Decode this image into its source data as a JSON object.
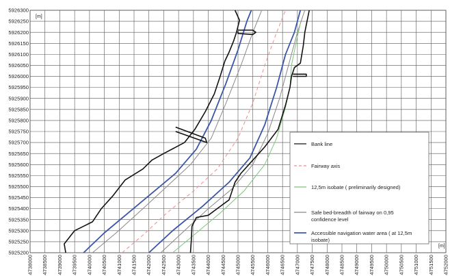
{
  "chart_data": {
    "type": "line",
    "x_unit": "[m]",
    "y_unit": "[m]",
    "xlim": [
      4738000,
      4752000
    ],
    "ylim": [
      5925200,
      5926300
    ],
    "x_ticks": [
      "4738000",
      "4738500",
      "4739000",
      "4739500",
      "4740000",
      "4740500",
      "4741000",
      "4741500",
      "4742000",
      "4742500",
      "4743000",
      "4743500",
      "4744000",
      "4744500",
      "4745000",
      "4745500",
      "4746000",
      "4746500",
      "4747000",
      "4747500",
      "4748000",
      "4748500",
      "4749000",
      "4749500",
      "4750000",
      "4750500",
      "4751000",
      "4751500",
      "4752000"
    ],
    "y_ticks": [
      "5926300",
      "5926250",
      "5926200",
      "5926150",
      "5926100",
      "5926050",
      "5926000",
      "5925950",
      "5925900",
      "5925850",
      "5925800",
      "5925750",
      "5925700",
      "5925650",
      "5925600",
      "5925550",
      "5925500",
      "5925450",
      "5925400",
      "5925350",
      "5925300",
      "5925250",
      "5925200"
    ],
    "grid": true,
    "legend_position": "bottom-right",
    "colors": {
      "bank_line": "#111111",
      "fairway_axis": "#f08a8a",
      "isobate": "#7cc47c",
      "safe_bed": "#888888",
      "accessible": "#3a55a8"
    },
    "series": [
      {
        "key": "bank_line",
        "name": "Bank line",
        "style": "solid",
        "segments": [
          [
            [
              4739200,
              5925200
            ],
            [
              4739150,
              5925240
            ],
            [
              4739500,
              5925300
            ],
            [
              4740100,
              5925340
            ],
            [
              4740400,
              5925400
            ],
            [
              4740800,
              5925460
            ],
            [
              4741200,
              5925530
            ],
            [
              4741800,
              5925580
            ],
            [
              4742100,
              5925620
            ],
            [
              4742500,
              5925650
            ],
            [
              4743200,
              5925700
            ],
            [
              4743550,
              5925760
            ],
            [
              4743900,
              5925840
            ],
            [
              4744200,
              5925920
            ],
            [
              4744400,
              5926000
            ],
            [
              4744560,
              5926070
            ],
            [
              4744700,
              5926110
            ],
            [
              4744850,
              5926160
            ],
            [
              4744950,
              5926200
            ],
            [
              4745050,
              5926255
            ],
            [
              4744900,
              5926300
            ]
          ],
          [
            [
              4742900,
              5925770
            ],
            [
              4743900,
              5925720
            ],
            [
              4743950,
              5925700
            ],
            [
              4742900,
              5925750
            ]
          ],
          [
            [
              4745000,
              5926205
            ],
            [
              4745000,
              5926195
            ],
            [
              4745500,
              5926190
            ],
            [
              4745600,
              5926200
            ],
            [
              4745500,
              5926210
            ],
            [
              4745000,
              5926210
            ]
          ],
          [
            [
              4743400,
              5925200
            ],
            [
              4743430,
              5925260
            ],
            [
              4743450,
              5925320
            ],
            [
              4743600,
              5925360
            ],
            [
              4744000,
              5925370
            ],
            [
              4744300,
              5925400
            ],
            [
              4744700,
              5925440
            ],
            [
              4744900,
              5925520
            ],
            [
              4745100,
              5925560
            ],
            [
              4745500,
              5925620
            ],
            [
              4745900,
              5925680
            ],
            [
              4746350,
              5925760
            ],
            [
              4746600,
              5925870
            ],
            [
              4746750,
              5925950
            ],
            [
              4746800,
              5926000
            ],
            [
              4746900,
              5926040
            ],
            [
              4747100,
              5926060
            ],
            [
              4747200,
              5926140
            ],
            [
              4747250,
              5926200
            ],
            [
              4747400,
              5926300
            ]
          ],
          [
            [
              4746850,
              5926000
            ],
            [
              4747300,
              5926000
            ],
            [
              4747300,
              5926010
            ],
            [
              4746850,
              5926010
            ]
          ]
        ]
      },
      {
        "key": "fairway_axis",
        "name": "Fairway axis",
        "style": "dashed",
        "segments": [
          [
            [
              4741100,
              5925200
            ],
            [
              4741800,
              5925280
            ],
            [
              4742600,
              5925380
            ],
            [
              4743500,
              5925480
            ],
            [
              4744300,
              5925580
            ],
            [
              4745000,
              5925720
            ],
            [
              4745500,
              5925880
            ],
            [
              4745900,
              5926050
            ],
            [
              4746300,
              5926200
            ],
            [
              4746600,
              5926300
            ]
          ]
        ]
      },
      {
        "key": "isobate",
        "name": "12,5m isobate ( preliminarily designed)",
        "style": "solid",
        "segments": [
          [
            [
              4742800,
              5925200
            ],
            [
              4743600,
              5925290
            ],
            [
              4744400,
              5925380
            ],
            [
              4745200,
              5925480
            ],
            [
              4745900,
              5925600
            ],
            [
              4746300,
              5925720
            ],
            [
              4746600,
              5925860
            ],
            [
              4746750,
              5925950
            ],
            [
              4746800,
              5926050
            ],
            [
              4746950,
              5926150
            ],
            [
              4747100,
              5926240
            ]
          ]
        ]
      },
      {
        "key": "safe_bed",
        "name": "Safe bed-breadth of fairway on 0,95 confidence level",
        "style": "solid",
        "segments": [
          [
            [
              4740100,
              5925200
            ],
            [
              4740900,
              5925290
            ],
            [
              4741800,
              5925400
            ],
            [
              4742600,
              5925500
            ],
            [
              4743400,
              5925600
            ],
            [
              4744100,
              5925720
            ],
            [
              4744600,
              5925880
            ],
            [
              4745100,
              5926050
            ],
            [
              4745500,
              5926200
            ],
            [
              4745800,
              5926300
            ]
          ],
          [
            [
              4742400,
              5925200
            ],
            [
              4743200,
              5925300
            ],
            [
              4744000,
              5925400
            ],
            [
              4744800,
              5925490
            ],
            [
              4745500,
              5925600
            ],
            [
              4746000,
              5925740
            ],
            [
              4746400,
              5925900
            ],
            [
              4746700,
              5926050
            ],
            [
              4747000,
              5926200
            ],
            [
              4747250,
              5926300
            ]
          ]
        ]
      },
      {
        "key": "accessible",
        "name": "Accessible navigation water area ( at 12,5m isobate)",
        "style": "solid",
        "segments": [
          [
            [
              4739800,
              5925200
            ],
            [
              4740500,
              5925290
            ],
            [
              4741300,
              5925380
            ],
            [
              4742100,
              5925470
            ],
            [
              4742900,
              5925560
            ],
            [
              4743600,
              5925670
            ],
            [
              4744100,
              5925800
            ],
            [
              4744600,
              5925970
            ],
            [
              4745000,
              5926120
            ],
            [
              4745300,
              5926250
            ],
            [
              4745450,
              5926300
            ]
          ],
          [
            [
              4742000,
              5925200
            ],
            [
              4742800,
              5925300
            ],
            [
              4743800,
              5925410
            ],
            [
              4744700,
              5925520
            ],
            [
              4745400,
              5925630
            ],
            [
              4745900,
              5925780
            ],
            [
              4746300,
              5925950
            ],
            [
              4746600,
              5926100
            ],
            [
              4746900,
              5926200
            ],
            [
              4747100,
              5926300
            ]
          ]
        ]
      }
    ]
  }
}
